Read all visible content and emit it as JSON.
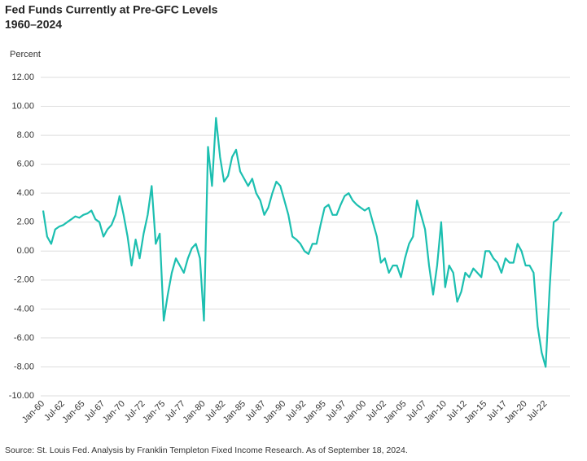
{
  "chart_data": {
    "type": "line",
    "title": "Fed Funds Currently at Pre-GFC Levels",
    "subtitle": "1960–2024",
    "y_label": "Percent",
    "source": "Source: St. Louis Fed. Analysis by Franklin Templeton Fixed Income Research. As of September 18, 2024.",
    "categories": [
      "Jan-60",
      null,
      null,
      null,
      null,
      "Jul-62",
      null,
      null,
      null,
      null,
      "Jan-65",
      null,
      null,
      null,
      null,
      "Jul-67",
      null,
      null,
      null,
      null,
      "Jan-70",
      null,
      null,
      null,
      null,
      "Jul-72",
      null,
      null,
      null,
      null,
      "Jan-75",
      null,
      null,
      null,
      null,
      "Jul-77",
      null,
      null,
      null,
      null,
      "Jan-80",
      null,
      null,
      null,
      null,
      "Jul-82",
      null,
      null,
      null,
      null,
      "Jan-85",
      null,
      null,
      null,
      null,
      "Jul-87",
      null,
      null,
      null,
      null,
      "Jan-90",
      null,
      null,
      null,
      null,
      "Jul-92",
      null,
      null,
      null,
      null,
      "Jan-95",
      null,
      null,
      null,
      null,
      "Jul-97",
      null,
      null,
      null,
      null,
      "Jan-00",
      null,
      null,
      null,
      null,
      "Jul-02",
      null,
      null,
      null,
      null,
      "Jan-05",
      null,
      null,
      null,
      null,
      "Jul-07",
      null,
      null,
      null,
      null,
      "Jan-10",
      null,
      null,
      null,
      null,
      "Jul-12",
      null,
      null,
      null,
      null,
      "Jan-15",
      null,
      null,
      null,
      null,
      "Jul-17",
      null,
      null,
      null,
      null,
      "Jan-20",
      null,
      null,
      null,
      null,
      "Jul-22",
      null,
      null,
      null,
      null
    ],
    "series": [
      {
        "color": "#1cbfb0",
        "values": [
          2.8,
          1.0,
          0.5,
          1.5,
          1.7,
          1.8,
          2.0,
          2.2,
          2.4,
          2.3,
          2.5,
          2.6,
          2.8,
          2.2,
          2.0,
          1.0,
          1.5,
          1.8,
          2.5,
          3.8,
          2.5,
          1.0,
          -1.0,
          0.8,
          -0.5,
          1.2,
          2.5,
          4.5,
          0.5,
          1.2,
          -4.8,
          -3.0,
          -1.5,
          -0.5,
          -1.0,
          -1.5,
          -0.5,
          0.2,
          0.5,
          -0.5,
          -4.8,
          7.2,
          4.5,
          9.2,
          6.5,
          4.8,
          5.2,
          6.5,
          7.0,
          5.5,
          5.0,
          4.5,
          5.0,
          4.0,
          3.5,
          2.5,
          3.0,
          4.0,
          4.8,
          4.5,
          3.5,
          2.5,
          1.0,
          0.8,
          0.5,
          0.0,
          -0.2,
          0.5,
          0.5,
          1.8,
          3.0,
          3.2,
          2.5,
          2.5,
          3.2,
          3.8,
          4.0,
          3.5,
          3.2,
          3.0,
          2.8,
          3.0,
          2.0,
          1.0,
          -0.8,
          -0.5,
          -1.5,
          -1.0,
          -1.0,
          -1.8,
          -0.5,
          0.5,
          1.0,
          3.5,
          2.5,
          1.5,
          -1.0,
          -3.0,
          -1.0,
          2.0,
          -2.5,
          -1.0,
          -1.5,
          -3.5,
          -2.8,
          -1.5,
          -1.8,
          -1.2,
          -1.5,
          -1.8,
          0.0,
          0.0,
          -0.5,
          -0.8,
          -1.5,
          -0.5,
          -0.8,
          -0.8,
          0.5,
          0.0,
          -1.0,
          -1.0,
          -1.5,
          -5.2,
          -7.0,
          -8.0,
          -2.5,
          2.0,
          2.2,
          2.7
        ]
      }
    ],
    "ylim": [
      -10,
      12
    ],
    "yticks": [
      {
        "value": 12,
        "label": "12.00"
      },
      {
        "value": 10,
        "label": "10.00"
      },
      {
        "value": 8,
        "label": "8.00"
      },
      {
        "value": 6,
        "label": "6.00"
      },
      {
        "value": 4,
        "label": "4.00"
      },
      {
        "value": 2,
        "label": "2.00"
      },
      {
        "value": 0,
        "label": "0.00"
      },
      {
        "value": -2,
        "label": "-2.00"
      },
      {
        "value": -4,
        "label": "-4.00"
      },
      {
        "value": -6,
        "label": "-6.00"
      },
      {
        "value": -8,
        "label": "-8.00"
      },
      {
        "value": -10,
        "label": "-10.00"
      }
    ],
    "grid": true
  }
}
